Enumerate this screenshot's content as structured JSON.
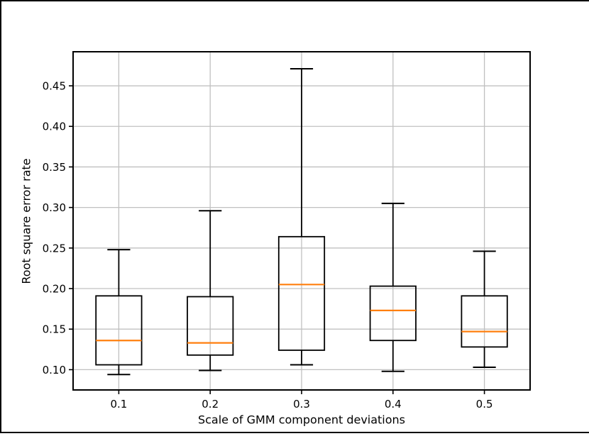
{
  "chart_data": {
    "type": "box",
    "title": "",
    "xlabel": "Scale of GMM component deviations",
    "ylabel": "Root square error rate",
    "categories": [
      "0.1",
      "0.2",
      "0.3",
      "0.4",
      "0.5"
    ],
    "boxes": [
      {
        "category": "0.1",
        "whislo": 0.094,
        "q1": 0.106,
        "med": 0.136,
        "q3": 0.191,
        "whishi": 0.248
      },
      {
        "category": "0.2",
        "whislo": 0.099,
        "q1": 0.118,
        "med": 0.133,
        "q3": 0.19,
        "whishi": 0.296
      },
      {
        "category": "0.3",
        "whislo": 0.106,
        "q1": 0.124,
        "med": 0.205,
        "q3": 0.264,
        "whishi": 0.471
      },
      {
        "category": "0.4",
        "whislo": 0.098,
        "q1": 0.136,
        "med": 0.173,
        "q3": 0.203,
        "whishi": 0.305
      },
      {
        "category": "0.5",
        "whislo": 0.103,
        "q1": 0.128,
        "med": 0.147,
        "q3": 0.191,
        "whishi": 0.246
      }
    ],
    "yticks": [
      {
        "value": 0.1,
        "label": "0.10"
      },
      {
        "value": 0.15,
        "label": "0.15"
      },
      {
        "value": 0.2,
        "label": "0.20"
      },
      {
        "value": 0.25,
        "label": "0.25"
      },
      {
        "value": 0.3,
        "label": "0.30"
      },
      {
        "value": 0.35,
        "label": "0.35"
      },
      {
        "value": 0.4,
        "label": "0.40"
      },
      {
        "value": 0.45,
        "label": "0.45"
      }
    ],
    "ylim": [
      0.075,
      0.492
    ],
    "xlim": [
      0.5,
      5.5
    ],
    "grid": "both",
    "legend": "none",
    "colors": {
      "median": "#ff7f0e",
      "box": "#000000",
      "grid": "#c0c0c0",
      "spine": "#000000",
      "background": "#ffffff",
      "frame": "#000000"
    }
  }
}
